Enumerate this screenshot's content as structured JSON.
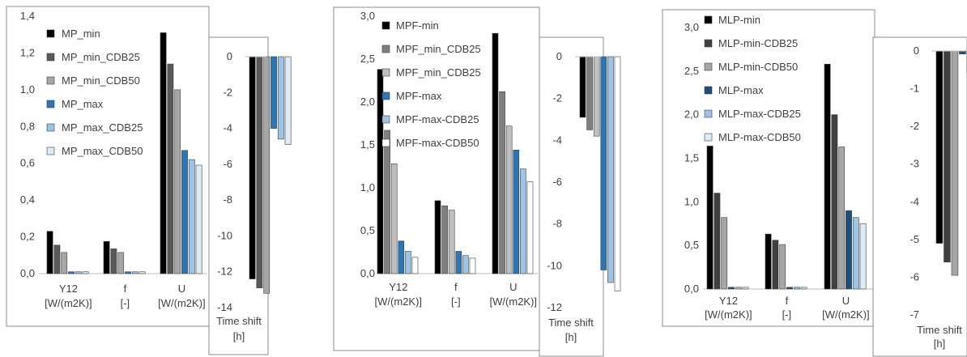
{
  "chart_data": [
    {
      "id": "mp",
      "main": {
        "type": "bar",
        "categories": [
          [
            "Y12",
            "[W/(m2K)]"
          ],
          [
            "f",
            "[-]"
          ],
          [
            "U",
            "[W/(m2K)]"
          ]
        ],
        "ylim": [
          0,
          1.4
        ],
        "yticks": [
          "0,0",
          "0,2",
          "0,4",
          "0,6",
          "0,8",
          "1,0",
          "1,2",
          "1,4"
        ],
        "series": [
          {
            "name": "MP_min",
            "color": "#000000",
            "values": [
              0.23,
              0.175,
              1.31
            ]
          },
          {
            "name": "MP_min_CDB25",
            "color": "#595959",
            "values": [
              0.155,
              0.135,
              1.14
            ]
          },
          {
            "name": "MP_min_CDB50",
            "color": "#a6a6a6",
            "values": [
              0.115,
              0.115,
              1.0
            ]
          },
          {
            "name": "MP_max",
            "color": "#2e75b6",
            "values": [
              0.01,
              0.01,
              0.67
            ]
          },
          {
            "name": "MP_max_CDB25",
            "color": "#9dc3e6",
            "values": [
              0.01,
              0.01,
              0.62
            ]
          },
          {
            "name": "MP_max_CDB50",
            "color": "#deebf7",
            "values": [
              0.01,
              0.01,
              0.59
            ]
          }
        ]
      },
      "shift": {
        "type": "bar",
        "category": [
          "Time shift",
          "[h]"
        ],
        "ylim": [
          -14,
          0
        ],
        "yticks": [
          "0",
          "-2",
          "-4",
          "-6",
          "-8",
          "-10",
          "-12",
          "-14"
        ],
        "values": [
          -12.4,
          -12.9,
          -13.2,
          -4.0,
          -4.6,
          -4.9
        ]
      }
    },
    {
      "id": "mpf",
      "main": {
        "type": "bar",
        "categories": [
          [
            "Y12",
            "[W/(m2K)]"
          ],
          [
            "f",
            "[-]"
          ],
          [
            "U",
            "[W/(m2K)]"
          ]
        ],
        "ylim": [
          0,
          3.0
        ],
        "yticks": [
          "0,0",
          "0,5",
          "1,0",
          "1,5",
          "2,0",
          "2,5",
          "3,0"
        ],
        "series": [
          {
            "name": "MPF-min",
            "color": "#000000",
            "values": [
              2.38,
              0.85,
              2.8
            ]
          },
          {
            "name": "MPF_min_CDB25",
            "color": "#7f7f7f",
            "values": [
              1.67,
              0.79,
              2.12
            ]
          },
          {
            "name": "MPF_min_CDB25",
            "color": "#bfbfbf",
            "values": [
              1.28,
              0.74,
              1.72
            ]
          },
          {
            "name": "MPF-max",
            "color": "#2e75b6",
            "values": [
              0.38,
              0.26,
              1.44
            ]
          },
          {
            "name": "MPF-max-CDB25",
            "color": "#9dc3e6",
            "values": [
              0.26,
              0.21,
              1.22
            ]
          },
          {
            "name": "MPF-max-CDB50",
            "color": "#ffffff",
            "values": [
              0.19,
              0.18,
              1.07
            ]
          }
        ]
      },
      "shift": {
        "type": "bar",
        "category": [
          "Time shift",
          "[h]"
        ],
        "ylim": [
          -12,
          0
        ],
        "yticks": [
          "0",
          "-2",
          "-4",
          "-6",
          "-8",
          "-10",
          "-12"
        ],
        "values": [
          -2.9,
          -3.5,
          -3.8,
          -10.2,
          -10.8,
          -11.2
        ]
      }
    },
    {
      "id": "mlp",
      "main": {
        "type": "bar",
        "categories": [
          [
            "Y12",
            "[W/(m2K)]"
          ],
          [
            "f",
            "[-]"
          ],
          [
            "U",
            "[W/(m2K)]"
          ]
        ],
        "ylim": [
          0,
          3.0
        ],
        "yticks": [
          "0,0",
          "0,5",
          "1,0",
          "1,5",
          "2,0",
          "2,5",
          "3,0"
        ],
        "series": [
          {
            "name": "MLP-min",
            "color": "#000000",
            "values": [
              1.64,
              0.63,
              2.58
            ]
          },
          {
            "name": "MLP-min-CDB25",
            "color": "#404040",
            "values": [
              1.1,
              0.56,
              2.0
            ]
          },
          {
            "name": "MLP-min-CDB50",
            "color": "#a6a6a6",
            "values": [
              0.82,
              0.51,
              1.63
            ]
          },
          {
            "name": "MLP-max",
            "color": "#1f4e79",
            "values": [
              0.02,
              0.02,
              0.9
            ]
          },
          {
            "name": "MLP-max-CDB25",
            "color": "#9dc3e6",
            "values": [
              0.02,
              0.02,
              0.82
            ]
          },
          {
            "name": "MLP-max-CDB50",
            "color": "#deebf7",
            "values": [
              0.02,
              0.02,
              0.75
            ]
          }
        ]
      },
      "shift": {
        "type": "bar",
        "category": [
          "Time shift",
          "[h]"
        ],
        "ylim": [
          -7,
          0
        ],
        "yticks": [
          "0",
          "-1",
          "-2",
          "-3",
          "-4",
          "-5",
          "-6",
          "-7"
        ],
        "values": [
          -5.1,
          -5.6,
          -5.95,
          -0.08,
          -0.6,
          -0.9
        ]
      }
    }
  ]
}
